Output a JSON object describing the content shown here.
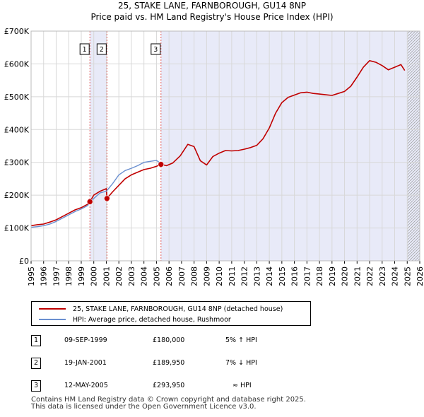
{
  "title_line1": "25, STAKE LANE, FARNBOROUGH, GU14 8NP",
  "title_line2": "Price paid vs. HM Land Registry's House Price Index (HPI)",
  "colors": {
    "price": "#c00000",
    "hpi": "#6a8fd0",
    "shade": "#e8eaf8",
    "grid": "#d8d8d8",
    "vline": "#e06060"
  },
  "legend": {
    "price_label": "25, STAKE LANE, FARNBOROUGH, GU14 8NP (detached house)",
    "hpi_label": "HPI: Average price, detached house, Rushmoor"
  },
  "sales": [
    {
      "marker": "1",
      "date": "09-SEP-1999",
      "price": "£180,000",
      "hpi_delta": "5% ↑ HPI"
    },
    {
      "marker": "2",
      "date": "19-JAN-2001",
      "price": "£189,950",
      "hpi_delta": "7% ↓ HPI"
    },
    {
      "marker": "3",
      "date": "12-MAY-2005",
      "price": "£293,950",
      "hpi_delta": "≈ HPI"
    }
  ],
  "footer_line1": "Contains HM Land Registry data © Crown copyright and database right 2025.",
  "footer_line2": "This data is licensed under the Open Government Licence v3.0.",
  "chart_data": {
    "type": "line",
    "xlim": [
      1995,
      2026
    ],
    "ylim": [
      0,
      700000
    ],
    "ytick_values": [
      0,
      100000,
      200000,
      300000,
      400000,
      500000,
      600000,
      700000
    ],
    "ytick_labels": [
      "£0",
      "£100K",
      "£200K",
      "£300K",
      "£400K",
      "£500K",
      "£600K",
      "£700K"
    ],
    "xtick_labels": [
      "1995",
      "1996",
      "1997",
      "1998",
      "1999",
      "2000",
      "2001",
      "2002",
      "2003",
      "2004",
      "2005",
      "2006",
      "2007",
      "2008",
      "2009",
      "2010",
      "2011",
      "2012",
      "2013",
      "2014",
      "2015",
      "2016",
      "2017",
      "2018",
      "2019",
      "2020",
      "2021",
      "2022",
      "2023",
      "2024",
      "2025",
      "2026"
    ],
    "shaded_ranges": [
      [
        1999.69,
        2001.05
      ],
      [
        2005.36,
        2026.0
      ]
    ],
    "future_hatch_from": 2025.0,
    "sale_markers": [
      {
        "label": "1",
        "x": 1999.69,
        "y": 180000
      },
      {
        "label": "2",
        "x": 2001.05,
        "y": 189950
      },
      {
        "label": "3",
        "x": 2005.36,
        "y": 293950
      }
    ],
    "series": [
      {
        "name": "25, STAKE LANE, FARNBOROUGH, GU14 8NP (detached house)",
        "x": [
          1995.0,
          1995.5,
          1996.0,
          1996.5,
          1997.0,
          1997.5,
          1998.0,
          1998.5,
          1999.0,
          1999.5,
          1999.69,
          2000.0,
          2000.5,
          2001.0,
          2001.05,
          2001.5,
          2002.0,
          2002.5,
          2003.0,
          2003.5,
          2004.0,
          2004.5,
          2005.0,
          2005.36,
          2005.8,
          2006.3,
          2006.9,
          2007.5,
          2008.0,
          2008.5,
          2009.0,
          2009.5,
          2010.0,
          2010.5,
          2011.0,
          2011.5,
          2012.0,
          2012.5,
          2013.0,
          2013.5,
          2014.0,
          2014.5,
          2015.0,
          2015.5,
          2016.0,
          2016.5,
          2017.0,
          2017.5,
          2018.0,
          2018.5,
          2019.0,
          2019.5,
          2020.0,
          2020.5,
          2021.0,
          2021.5,
          2022.0,
          2022.5,
          2023.0,
          2023.5,
          2024.0,
          2024.5,
          2024.8
        ],
        "values": [
          107000,
          110000,
          112000,
          118000,
          125000,
          135000,
          145000,
          155000,
          162000,
          172000,
          180000,
          200000,
          212000,
          220000,
          189950,
          210000,
          230000,
          250000,
          262000,
          270000,
          278000,
          282000,
          288000,
          293950,
          290000,
          298000,
          320000,
          355000,
          348000,
          305000,
          292000,
          318000,
          328000,
          336000,
          335000,
          336000,
          340000,
          345000,
          352000,
          372000,
          405000,
          450000,
          482000,
          498000,
          505000,
          512000,
          514000,
          510000,
          508000,
          506000,
          504000,
          510000,
          516000,
          532000,
          560000,
          590000,
          610000,
          605000,
          595000,
          582000,
          590000,
          598000,
          580000
        ]
      },
      {
        "name": "HPI: Average price, detached house, Rushmoor",
        "x": [
          1995.0,
          1995.5,
          1996.0,
          1996.5,
          1997.0,
          1997.5,
          1998.0,
          1998.5,
          1999.0,
          1999.5,
          2000.0,
          2000.5,
          2001.0,
          2001.5,
          2002.0,
          2002.5,
          2003.0,
          2003.5,
          2004.0,
          2004.5,
          2005.0,
          2005.36
        ],
        "values": [
          102000,
          104000,
          107000,
          112000,
          120000,
          130000,
          140000,
          150000,
          158000,
          168000,
          190000,
          207000,
          212000,
          235000,
          262000,
          275000,
          282000,
          290000,
          300000,
          303000,
          306000,
          296000
        ]
      }
    ]
  }
}
